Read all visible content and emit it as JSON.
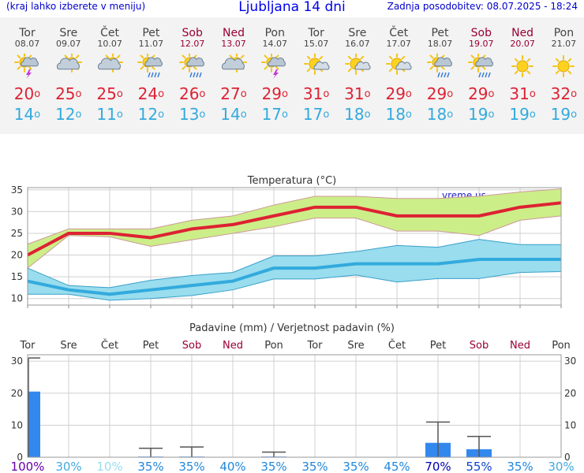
{
  "header": {
    "menu_hint": "(kraj lahko izberete v meniju)",
    "title": "Ljubljana 14 dni",
    "updated": "Zadnja posodobitev: 08.07.2025 - 18:24"
  },
  "days": [
    {
      "name": "Tor",
      "date": "08.07",
      "weekend": false,
      "icon": "sun-cloud-lightning-icon",
      "max": "20",
      "min": "14"
    },
    {
      "name": "Sre",
      "date": "09.07",
      "weekend": false,
      "icon": "sun-behind-cloud-icon",
      "max": "25",
      "min": "12"
    },
    {
      "name": "Čet",
      "date": "10.07",
      "weekend": false,
      "icon": "sun-behind-cloud-icon",
      "max": "25",
      "min": "11"
    },
    {
      "name": "Pet",
      "date": "11.07",
      "weekend": false,
      "icon": "sun-cloud-rain-icon",
      "max": "24",
      "min": "12"
    },
    {
      "name": "Sob",
      "date": "12.07",
      "weekend": true,
      "icon": "sun-cloud-rain-icon",
      "max": "26",
      "min": "13"
    },
    {
      "name": "Ned",
      "date": "13.07",
      "weekend": true,
      "icon": "sun-behind-cloud-icon",
      "max": "27",
      "min": "14"
    },
    {
      "name": "Pon",
      "date": "14.07",
      "weekend": false,
      "icon": "sun-cloud-lightning-icon",
      "max": "29",
      "min": "17"
    },
    {
      "name": "Tor",
      "date": "15.07",
      "weekend": false,
      "icon": "sun-small-cloud-icon",
      "max": "31",
      "min": "17"
    },
    {
      "name": "Sre",
      "date": "16.07",
      "weekend": false,
      "icon": "sun-small-cloud-icon",
      "max": "31",
      "min": "18"
    },
    {
      "name": "Čet",
      "date": "17.07",
      "weekend": false,
      "icon": "sun-small-cloud-icon",
      "max": "29",
      "min": "18"
    },
    {
      "name": "Pet",
      "date": "18.07",
      "weekend": false,
      "icon": "sun-cloud-rain-icon",
      "max": "29",
      "min": "18"
    },
    {
      "name": "Sob",
      "date": "19.07",
      "weekend": true,
      "icon": "sun-cloud-rain-icon",
      "max": "29",
      "min": "19"
    },
    {
      "name": "Ned",
      "date": "20.07",
      "weekend": true,
      "icon": "sun-icon",
      "max": "31",
      "min": "19"
    },
    {
      "name": "Pon",
      "date": "21.07",
      "weekend": false,
      "icon": "sun-icon",
      "max": "32",
      "min": "19"
    }
  ],
  "colors": {
    "max": "#dd2233",
    "min": "#33aadd",
    "weekend": "#990033",
    "precip_bar": "#3388ee",
    "warm_band": "#ccee88",
    "cool_band": "#99ddee"
  },
  "chart_data": [
    {
      "type": "line",
      "title": "Temperatura (°C)",
      "watermark": "vreme.us",
      "ylim": [
        8.5,
        35.5
      ],
      "yticks": [
        10,
        15,
        20,
        25,
        30,
        35
      ],
      "series": [
        {
          "name": "max",
          "values": [
            20,
            25,
            25,
            24,
            26,
            27,
            29,
            31,
            31,
            29,
            29,
            29,
            31,
            32
          ]
        },
        {
          "name": "max_high",
          "values": [
            22.5,
            26,
            26,
            26,
            28,
            29,
            31.5,
            33.5,
            33.5,
            33,
            33,
            33.5,
            34.5,
            35.2
          ]
        },
        {
          "name": "max_low",
          "values": [
            17,
            24.5,
            24.2,
            22,
            23.5,
            25,
            26.5,
            28.5,
            28.5,
            25.5,
            25.5,
            24.5,
            28,
            29
          ]
        },
        {
          "name": "min",
          "values": [
            14,
            12,
            11,
            12,
            13,
            14,
            17,
            17,
            18,
            18,
            18,
            19,
            19,
            19
          ]
        },
        {
          "name": "min_high",
          "values": [
            17,
            13,
            12.5,
            14.2,
            15.3,
            16,
            19.8,
            19.8,
            20.8,
            22.2,
            21.8,
            23.6,
            22.4,
            22.4
          ]
        },
        {
          "name": "min_low",
          "values": [
            11,
            11,
            9.6,
            10,
            10.7,
            12,
            14.5,
            14.5,
            15.4,
            13.8,
            14.6,
            14.6,
            16,
            16.2
          ]
        }
      ]
    },
    {
      "type": "bar",
      "title": "Padavine (mm) / Verjetnost padavin (%)",
      "ylim": [
        0,
        32
      ],
      "yticks": [
        0,
        10,
        20,
        30
      ],
      "categories": [
        "Tor",
        "Sre",
        "Čet",
        "Pet",
        "Sob",
        "Ned",
        "Pon",
        "Tor",
        "Sre",
        "Čet",
        "Pet",
        "Sob",
        "Ned",
        "Pon"
      ],
      "weekend": [
        false,
        false,
        false,
        false,
        true,
        true,
        false,
        false,
        false,
        false,
        false,
        true,
        true,
        false
      ],
      "precip_mm": [
        20.5,
        0,
        0,
        0.2,
        0.2,
        0,
        0.2,
        0,
        0,
        0,
        4.5,
        2.5,
        0,
        0
      ],
      "precip_max": [
        31,
        0,
        0,
        2.8,
        3.2,
        0,
        1.6,
        0,
        0,
        0,
        11,
        6.5,
        0,
        0
      ],
      "probability": [
        "100%",
        "30%",
        "10%",
        "35%",
        "35%",
        "40%",
        "35%",
        "35%",
        "35%",
        "45%",
        "70%",
        "55%",
        "35%",
        "30%"
      ]
    }
  ]
}
